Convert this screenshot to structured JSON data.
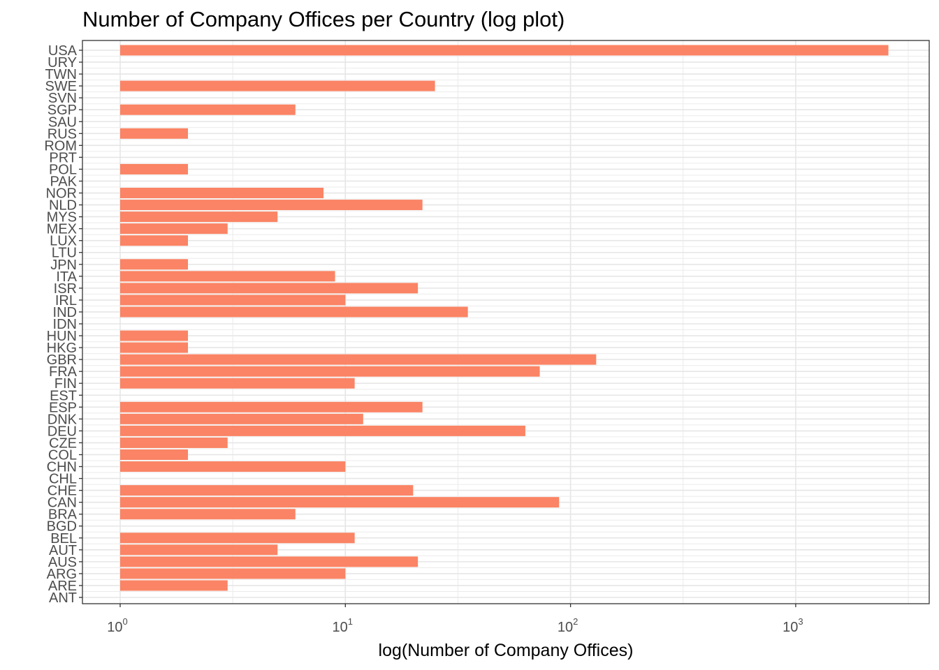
{
  "chart_data": {
    "type": "bar",
    "orientation": "horizontal",
    "title": "Number of Company Offices per Country (log plot)",
    "xlabel": "log(Number of Company Offices)",
    "ylabel": "",
    "x_scale": "log10",
    "xlim": [
      1,
      3500
    ],
    "x_ticks": [
      {
        "value": 1,
        "base": "10",
        "exp": "0"
      },
      {
        "value": 10,
        "base": "10",
        "exp": "1"
      },
      {
        "value": 100,
        "base": "10",
        "exp": "2"
      },
      {
        "value": 1000,
        "base": "10",
        "exp": "3"
      }
    ],
    "grid": true,
    "bar_color": "#FA8465",
    "categories": [
      "ANT",
      "ARE",
      "ARG",
      "AUS",
      "AUT",
      "BEL",
      "BGD",
      "BRA",
      "CAN",
      "CHE",
      "CHL",
      "CHN",
      "COL",
      "CZE",
      "DEU",
      "DNK",
      "ESP",
      "EST",
      "FIN",
      "FRA",
      "GBR",
      "HKG",
      "HUN",
      "IDN",
      "IND",
      "IRL",
      "ISR",
      "ITA",
      "JPN",
      "LTU",
      "LUX",
      "MEX",
      "MYS",
      "NLD",
      "NOR",
      "PAK",
      "POL",
      "PRT",
      "ROM",
      "RUS",
      "SAU",
      "SGP",
      "SVN",
      "SWE",
      "TWN",
      "URY",
      "USA"
    ],
    "values": [
      1,
      3,
      10,
      21,
      5,
      11,
      1,
      6,
      89,
      20,
      1,
      10,
      2,
      3,
      63,
      12,
      22,
      1,
      11,
      73,
      130,
      2,
      2,
      1,
      35,
      10,
      21,
      9,
      2,
      1,
      2,
      3,
      5,
      22,
      8,
      1,
      2,
      1,
      1,
      2,
      1,
      6,
      1,
      25,
      1,
      1,
      2580
    ]
  }
}
